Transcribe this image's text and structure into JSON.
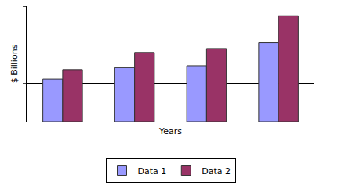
{
  "chart_data": {
    "type": "bar",
    "categories": [
      null,
      null,
      null,
      null
    ],
    "series": [
      {
        "name": "Data 1",
        "color": "#9999ff",
        "values": [
          1.1,
          1.4,
          1.45,
          2.05
        ]
      },
      {
        "name": "Data 2",
        "color": "#993366",
        "values": [
          1.35,
          1.8,
          1.9,
          2.75
        ]
      }
    ],
    "x_label": "Years",
    "y_label": "$ Billions",
    "ylim": [
      0,
      3
    ],
    "yticks": [
      0,
      1,
      2,
      3
    ],
    "grid": true,
    "tick_labels": false,
    "legend": "bottom"
  }
}
